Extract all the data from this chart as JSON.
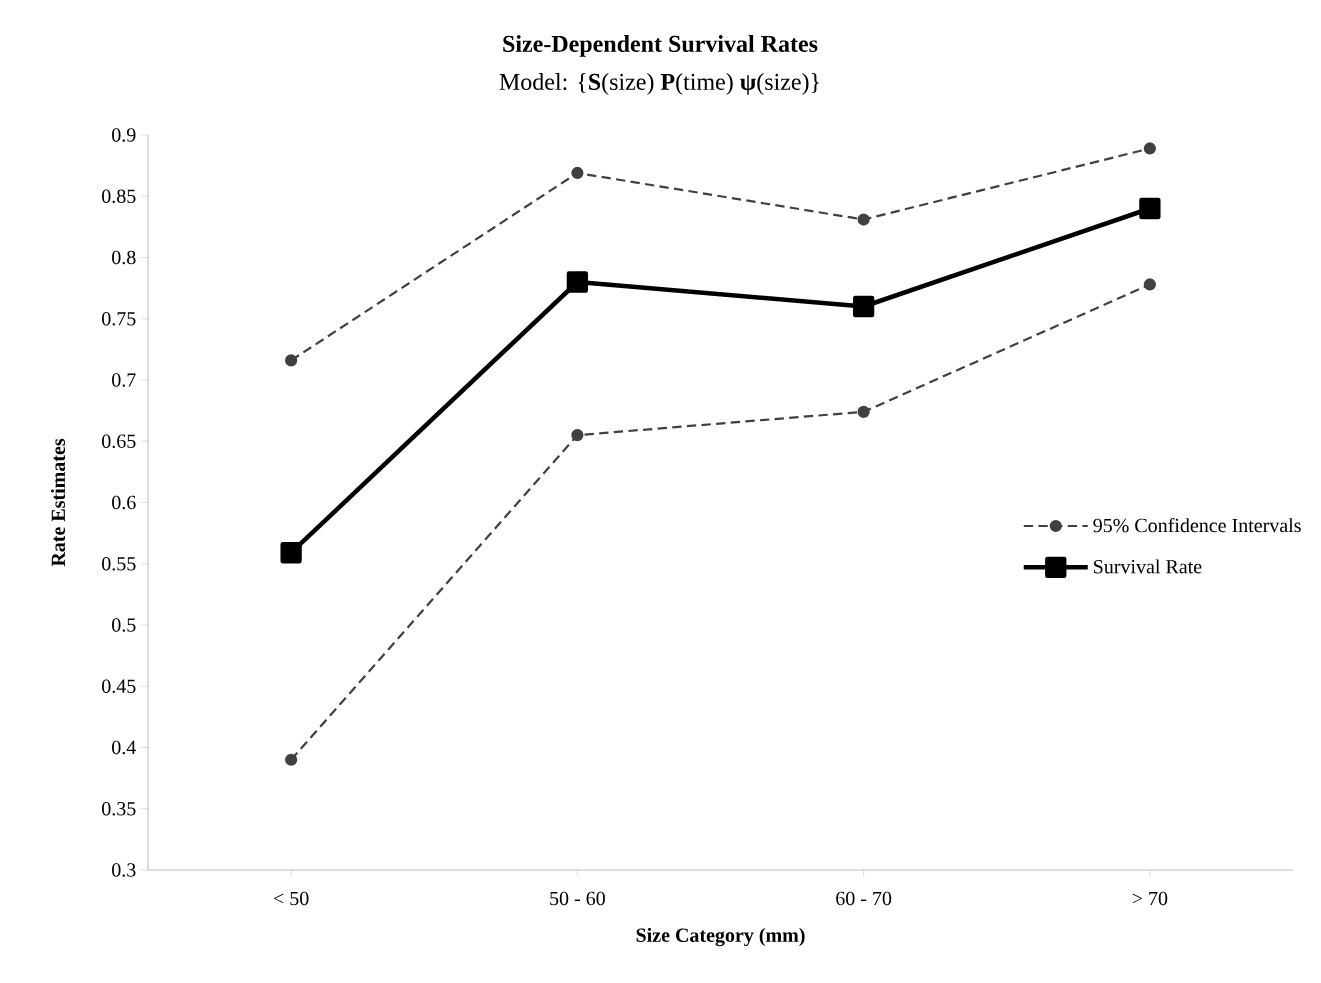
{
  "chart_data": {
    "type": "line",
    "title": "Size-Dependent Survival Rates",
    "subtitle": "Model: {**S**(size) **P**(time) **ψ**(size)}",
    "xlabel": "Size Category (mm)",
    "ylabel": "Rate Estimates",
    "categories": [
      "< 50",
      "50 - 60",
      "60 - 70",
      "> 70"
    ],
    "series": [
      {
        "name": "95% Confidence Intervals",
        "color": "#404040",
        "marker": "circle",
        "line_style": "dashed",
        "values": [
          0.716,
          0.869,
          0.831,
          0.889
        ]
      },
      {
        "color": "#404040",
        "marker": "circle",
        "line_style": "dashed",
        "values": [
          0.39,
          0.655,
          0.674,
          0.778
        ]
      },
      {
        "name": "Survival Rate",
        "color": "#000000",
        "marker": "square",
        "line_style": "solid",
        "values": [
          0.559,
          0.78,
          0.76,
          0.84
        ]
      }
    ],
    "ylim": [
      0.3,
      0.9
    ],
    "yticks": [
      0.3,
      0.35,
      0.4,
      0.45,
      0.5,
      0.55,
      0.6,
      0.65,
      0.7,
      0.75,
      0.8,
      0.85,
      0.9
    ],
    "legend": "right"
  }
}
